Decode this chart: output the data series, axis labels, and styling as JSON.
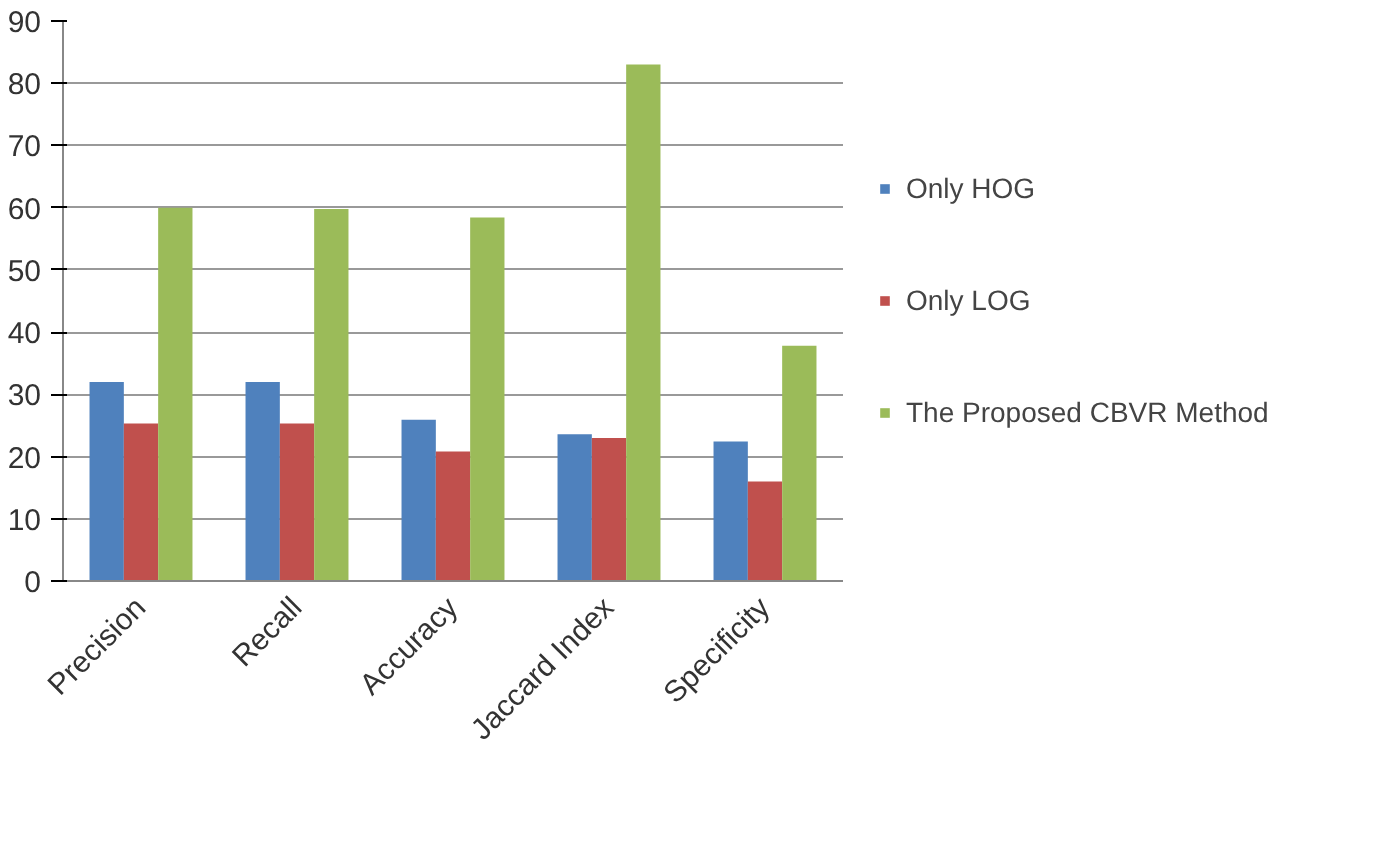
{
  "chart_data": {
    "type": "bar",
    "categories": [
      "Precision",
      "Recall",
      "Accuracy",
      "Jaccard Index",
      "Specificity"
    ],
    "series": [
      {
        "name": "Only HOG",
        "color": "#4f81bd",
        "values": [
          32,
          32,
          25.9,
          23.6,
          22.4
        ]
      },
      {
        "name": "Only LOG",
        "color": "#c0504d",
        "values": [
          25.3,
          25.3,
          20.8,
          23,
          16
        ]
      },
      {
        "name": "The Proposed CBVR Method",
        "color": "#9bbb59",
        "values": [
          60,
          59.8,
          58.4,
          83,
          37.8
        ]
      }
    ],
    "ylim": [
      0,
      90
    ],
    "yticks": [
      0,
      10,
      20,
      30,
      40,
      50,
      60,
      70,
      80,
      90
    ],
    "grid": "y",
    "legend": "right"
  }
}
